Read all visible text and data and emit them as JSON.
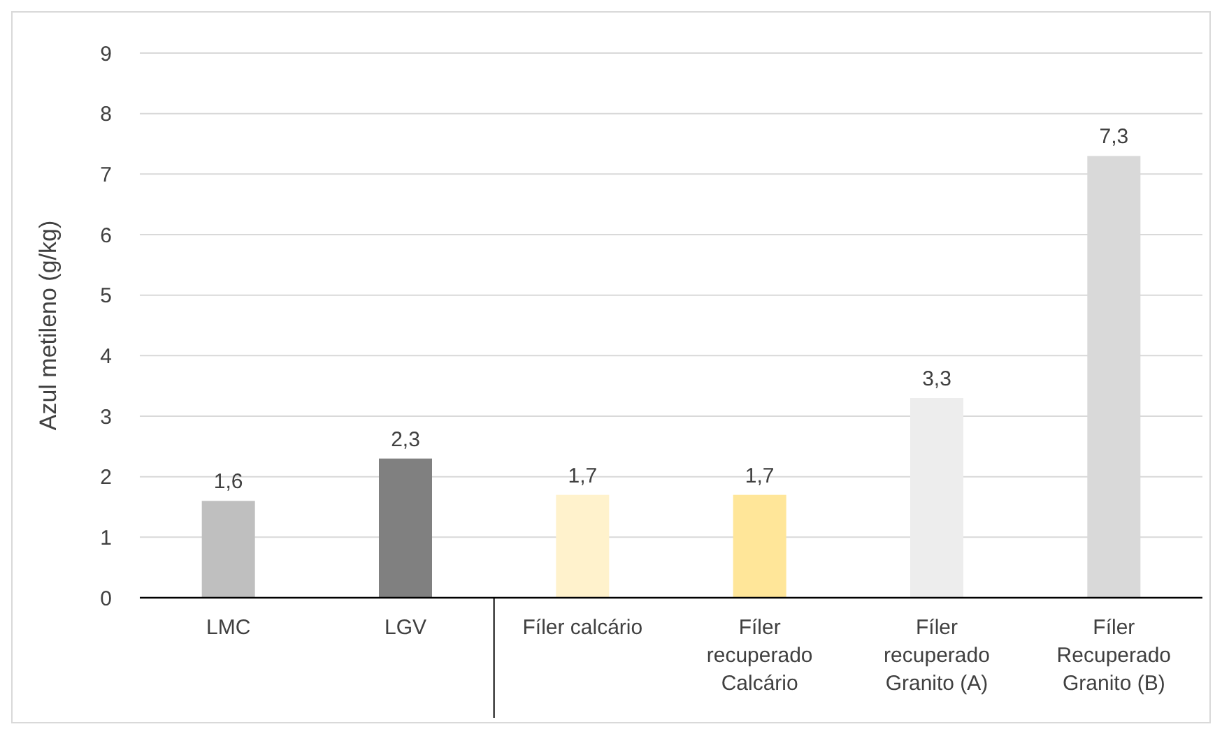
{
  "chart_data": {
    "type": "bar",
    "ylabel": "Azul metileno (g/kg)",
    "categories": [
      "LMC",
      "LGV",
      "Fíler calcário",
      "Fíler recuperado Calcário",
      "Fíler recuperado Granito (A)",
      "Fíler Recuperado Granito (B)"
    ],
    "values": [
      1.6,
      2.3,
      1.7,
      1.7,
      3.3,
      7.3
    ],
    "colors": [
      "#bfbfbf",
      "#808080",
      "#fff2cc",
      "#ffe699",
      "#ededed",
      "#d9d9d9"
    ],
    "value_labels": [
      "1,6",
      "2,3",
      "1,7",
      "1,7",
      "3,3",
      "7,3"
    ],
    "ylim": [
      0,
      9
    ],
    "yticks": [
      0,
      1,
      2,
      3,
      4,
      5,
      6,
      7,
      8,
      9
    ],
    "grid": "y"
  }
}
